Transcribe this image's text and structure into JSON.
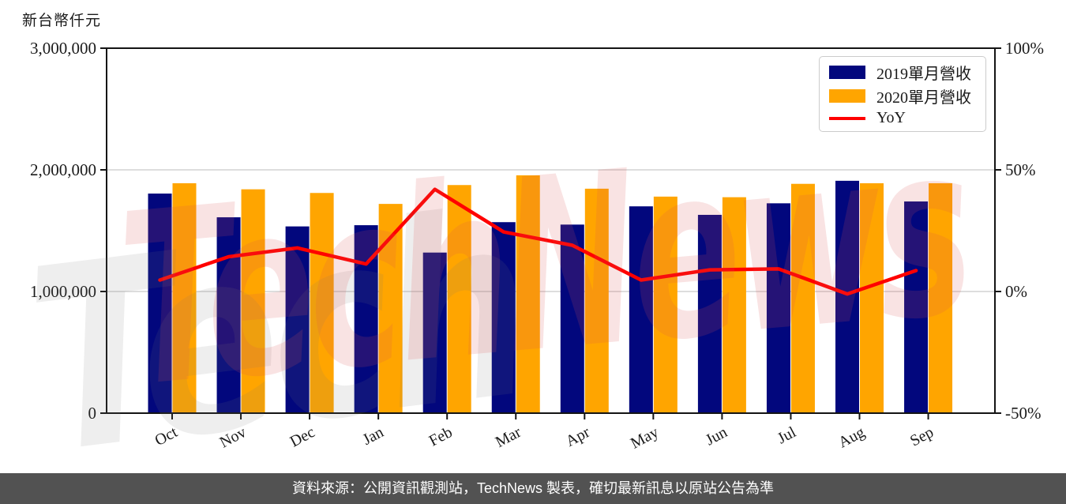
{
  "chart": {
    "unit_label": "新台幣仟元"
  },
  "legend": {
    "items": [
      {
        "label": "2019單月營收",
        "swatch": "patch",
        "color": "#02077d"
      },
      {
        "label": "2020單月營收",
        "swatch": "patch",
        "color": "#ffa500"
      },
      {
        "label": "YoY",
        "swatch": "line",
        "color": "#ff0000"
      }
    ]
  },
  "watermark": {
    "text": "TechNews"
  },
  "footer": {
    "text": "資料來源：公開資訊觀測站，TechNews 製表，確切最新訊息以原站公告為準"
  },
  "colors": {
    "bar_2019": "#02077d",
    "bar_2020": "#ffa500",
    "yoy_line": "#ff0000",
    "gridline": "#d2d2d2",
    "axis": "#1a1a1a",
    "footer_bg": "#525252",
    "watermark_pink": "#dd5555",
    "watermark_gray": "#777777"
  },
  "chart_data": {
    "type": "bar",
    "title": "",
    "xlabel": "",
    "ylabel_left": "新台幣仟元",
    "categories": [
      "Oct",
      "Nov",
      "Dec",
      "Jan",
      "Feb",
      "Mar",
      "Apr",
      "May",
      "Jun",
      "Jul",
      "Aug",
      "Sep"
    ],
    "series": [
      {
        "name": "2019單月營收",
        "type": "bar",
        "axis": "left",
        "color": "#02077d",
        "values": [
          1805000,
          1610000,
          1535000,
          1545000,
          1320000,
          1570000,
          1550000,
          1700000,
          1630000,
          1725000,
          1910000,
          1740000
        ]
      },
      {
        "name": "2020單月營收",
        "type": "bar",
        "axis": "left",
        "color": "#ffa500",
        "values": [
          1890000,
          1840000,
          1810000,
          1720000,
          1875000,
          1955000,
          1845000,
          1780000,
          1775000,
          1885000,
          1890000,
          1890000
        ]
      },
      {
        "name": "YoY",
        "type": "line",
        "axis": "right",
        "color": "#ff0000",
        "values": [
          4.7,
          14.3,
          17.9,
          11.3,
          42.0,
          24.5,
          19.0,
          4.7,
          8.9,
          9.3,
          -1.0,
          8.6
        ]
      }
    ],
    "left_axis": {
      "min": 0,
      "max": 3000000,
      "gridline_values": [
        1000000,
        2000000
      ],
      "ticks": [
        {
          "value": 0,
          "label": "0"
        },
        {
          "value": 1000000,
          "label": "1,000,000"
        },
        {
          "value": 2000000,
          "label": "2,000,000"
        },
        {
          "value": 3000000,
          "label": "3,000,000"
        }
      ]
    },
    "right_axis": {
      "min": -50,
      "max": 100,
      "ticks": [
        {
          "value": -50,
          "label": "-50%"
        },
        {
          "value": 0,
          "label": "0%"
        },
        {
          "value": 50,
          "label": "50%"
        },
        {
          "value": 100,
          "label": "100%"
        }
      ]
    },
    "grid": true,
    "legend_position": "upper right"
  }
}
